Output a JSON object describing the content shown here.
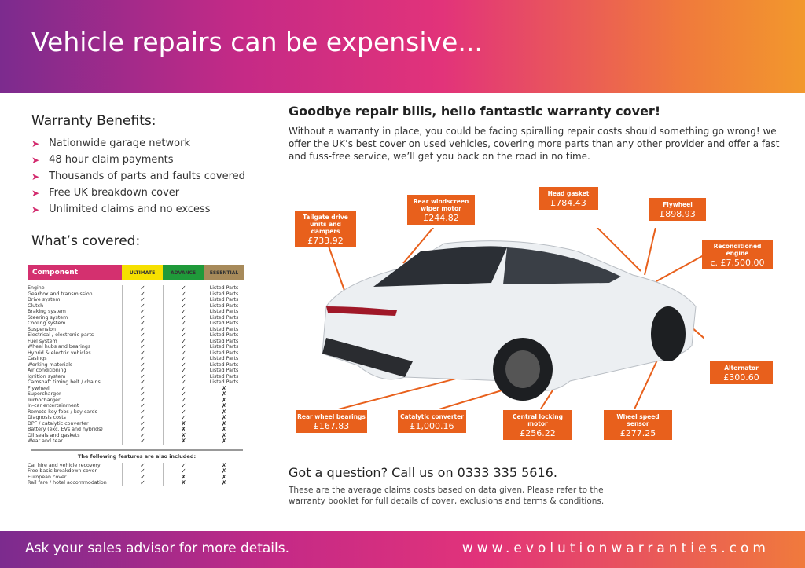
{
  "header": {
    "title": "Vehicle repairs can be expensive..."
  },
  "benefits": {
    "title": "Warranty Benefits:",
    "items": [
      "Nationwide garage network",
      "48 hour claim payments",
      "Thousands of parts and faults covered",
      "Free UK breakdown cover",
      "Unlimited claims and no excess"
    ]
  },
  "covered": {
    "title": "What’s covered:",
    "columns": [
      "Component",
      "ULTIMATE",
      "ADVANCE",
      "ESSENTIAL"
    ],
    "rows": [
      [
        "Engine",
        "✓",
        "✓",
        "Listed Parts"
      ],
      [
        "Gearbox and transmission",
        "✓",
        "✓",
        "Listed Parts"
      ],
      [
        "Drive system",
        "✓",
        "✓",
        "Listed Parts"
      ],
      [
        "Clutch",
        "✓",
        "✓",
        "Listed Parts"
      ],
      [
        "Braking system",
        "✓",
        "✓",
        "Listed Parts"
      ],
      [
        "Steering system",
        "✓",
        "✓",
        "Listed Parts"
      ],
      [
        "Cooling system",
        "✓",
        "✓",
        "Listed Parts"
      ],
      [
        "Suspension",
        "✓",
        "✓",
        "Listed Parts"
      ],
      [
        "Electrical / electronic parts",
        "✓",
        "✓",
        "Listed Parts"
      ],
      [
        "Fuel system",
        "✓",
        "✓",
        "Listed Parts"
      ],
      [
        "Wheel hubs and bearings",
        "✓",
        "✓",
        "Listed Parts"
      ],
      [
        "Hybrid & electric vehicles",
        "✓",
        "✓",
        "Listed Parts"
      ],
      [
        "Casings",
        "✓",
        "✓",
        "Listed Parts"
      ],
      [
        "Working materials",
        "✓",
        "✓",
        "Listed Parts"
      ],
      [
        "Air conditioning",
        "✓",
        "✓",
        "Listed Parts"
      ],
      [
        "Ignition system",
        "✓",
        "✓",
        "Listed Parts"
      ],
      [
        "Camshaft timing belt / chains",
        "✓",
        "✓",
        "Listed Parts"
      ],
      [
        "Flywheel",
        "✓",
        "✓",
        "✗"
      ],
      [
        "Supercharger",
        "✓",
        "✓",
        "✗"
      ],
      [
        "Turbocharger",
        "✓",
        "✓",
        "✗"
      ],
      [
        "In-car entertainment",
        "✓",
        "✓",
        "✗"
      ],
      [
        "Remote key fobs / key cards",
        "✓",
        "✓",
        "✗"
      ],
      [
        "Diagnosis costs",
        "✓",
        "✓",
        "✗"
      ],
      [
        "DPF / catalytic converter",
        "✓",
        "✗",
        "✗"
      ],
      [
        "Battery (exc. EVs and hybrids)",
        "✓",
        "✗",
        "✗"
      ],
      [
        "Oil seals and gaskets",
        "✓",
        "✗",
        "✗"
      ],
      [
        "Wear and tear",
        "✓",
        "✗",
        "✗"
      ]
    ],
    "extras_title": "The following features are also included:",
    "extras": [
      [
        "Car hire and vehicle recovery",
        "✓",
        "✓",
        "✗"
      ],
      [
        "Free basic breakdown cover",
        "✓",
        "✓",
        "✗"
      ],
      [
        "European cover",
        "✓",
        "✗",
        "✗"
      ],
      [
        "Rail fare / hotel accommodation",
        "✓",
        "✗",
        "✗"
      ]
    ]
  },
  "intro": {
    "title": "Goodbye repair bills, hello fantastic warranty cover!",
    "text": "Without a warranty in place, you could be facing spiralling repair costs should something go wrong! we offer the UK’s best cover on used vehicles, covering more parts than any other provider and offer a fast and fuss-free service, we’ll get you back on the road in no time."
  },
  "callouts": [
    {
      "label": "Tailgate drive units and dampers",
      "price": "£733.92"
    },
    {
      "label": "Rear windscreen wiper motor",
      "price": "£244.82"
    },
    {
      "label": "Head gasket",
      "price": "£784.43"
    },
    {
      "label": "Flywheel",
      "price": "£898.93"
    },
    {
      "label": "Reconditioned engine",
      "price": "c. £7,500.00"
    },
    {
      "label": "Alternator",
      "price": "£300.60"
    },
    {
      "label": "Rear wheel bearings",
      "price": "£167.83"
    },
    {
      "label": "Catalytic converter",
      "price": "£1,000.16"
    },
    {
      "label": "Central locking motor",
      "price": "£256.22"
    },
    {
      "label": "Wheel speed sensor",
      "price": "£277.25"
    }
  ],
  "contact": {
    "title": "Got a question? Call us on 0333 335 5616.",
    "note": "These are the average claims costs based on data given, Please refer to the warranty booklet for full details of cover, exclusions and terms & conditions."
  },
  "footer": {
    "left": "Ask your sales advisor for more details.",
    "right": "www.evolutionwarranties.com"
  },
  "colors": {
    "accent": "#e8601c",
    "pink": "#d4306f"
  }
}
